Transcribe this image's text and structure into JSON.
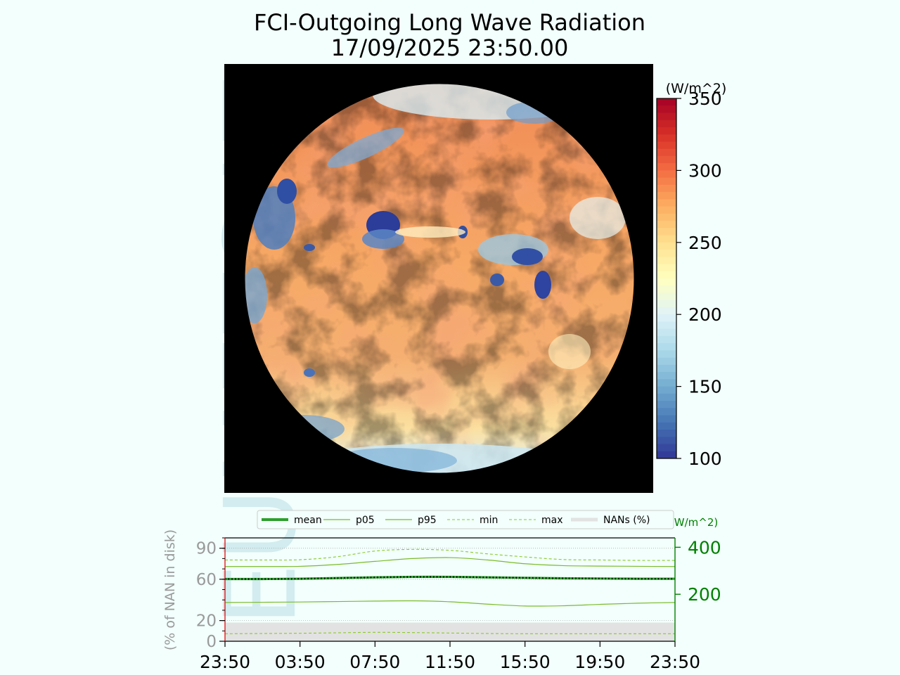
{
  "title": "FCI-Outgoing Long Wave Radiation",
  "subtitle": "17/09/2025 23:50.00",
  "watermark": "EUMETSAT",
  "colors": {
    "background": "#f2fffc",
    "disk_space": "#000000",
    "mean_line": "#2ca02c",
    "percentile_line": "#7cba2a",
    "minmax_line": "#8ac926",
    "nan_fill": "#e2e2e2",
    "right_axis": "#008000",
    "left_axis": "#8c8c8c",
    "left_spine": "#e31a1c"
  },
  "colorbar": {
    "unit": "(W/m^2)",
    "ticks": [
      "350",
      "300",
      "250",
      "200",
      "150",
      "100"
    ],
    "min": 100,
    "max": 350,
    "colormap": "RdYlBu_r"
  },
  "legend": [
    "mean",
    "p05",
    "p95",
    "min",
    "max",
    "NANs (%)"
  ],
  "chart_data": {
    "type": "line",
    "xlabel": "",
    "x_ticks": [
      "23:50",
      "03:50",
      "07:50",
      "11:50",
      "15:50",
      "19:50",
      "23:50"
    ],
    "left_axis": {
      "label": "(% of NAN in disk)",
      "ylim": [
        0,
        100
      ],
      "ticks": [
        "90",
        "60",
        "20",
        "0"
      ]
    },
    "right_axis": {
      "label": "W/m^2)",
      "ylim": [
        0,
        440
      ],
      "ticks": [
        "400",
        "200"
      ]
    },
    "x_hours": [
      0,
      2,
      4,
      6,
      8,
      10,
      12,
      14,
      16,
      18,
      20,
      22,
      24
    ],
    "series": [
      {
        "name": "mean",
        "values": [
          265,
          265,
          266,
          269,
          272,
          274,
          274,
          272,
          270,
          268,
          267,
          266,
          266
        ]
      },
      {
        "name": "p05",
        "values": [
          165,
          166,
          167,
          169,
          171,
          172,
          168,
          158,
          150,
          151,
          157,
          162,
          165
        ]
      },
      {
        "name": "p95",
        "values": [
          318,
          318,
          319,
          327,
          340,
          352,
          356,
          346,
          330,
          322,
          320,
          319,
          318
        ]
      },
      {
        "name": "min",
        "values": [
          32,
          33,
          34,
          36,
          38,
          37,
          35,
          33,
          32,
          32,
          32,
          32,
          32
        ]
      },
      {
        "name": "max",
        "values": [
          346,
          346,
          347,
          360,
          384,
          391,
          387,
          372,
          359,
          348,
          346,
          344,
          344
        ]
      },
      {
        "name": "NANs (%)",
        "values": [
          18,
          18,
          18,
          18,
          18,
          18,
          18,
          18,
          18,
          18,
          18,
          18,
          18
        ]
      }
    ]
  }
}
